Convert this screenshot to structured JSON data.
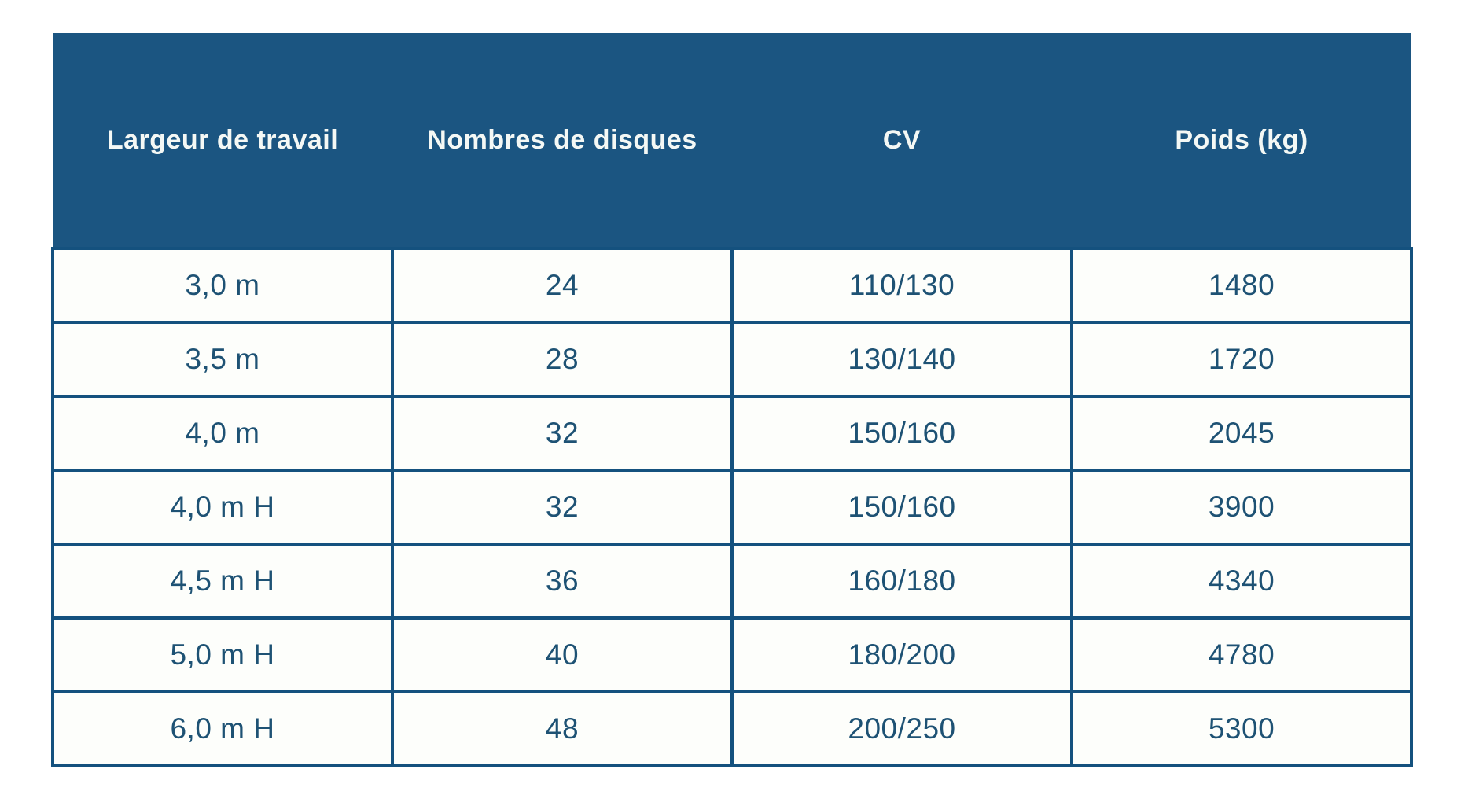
{
  "table": {
    "columns": [
      "Largeur de travail",
      "Nombres de disques",
      "CV",
      "Poids (kg)"
    ],
    "rows": [
      [
        "3,0 m",
        "24",
        "110/130",
        "1480"
      ],
      [
        "3,5 m",
        "28",
        "130/140",
        "1720"
      ],
      [
        "4,0 m",
        "32",
        "150/160",
        "2045"
      ],
      [
        "4,0 m H",
        "32",
        "150/160",
        "3900"
      ],
      [
        "4,5 m H",
        "36",
        "160/180",
        "4340"
      ],
      [
        "5,0 m H",
        "40",
        "180/200",
        "4780"
      ],
      [
        "6,0 m H",
        "48",
        "200/250",
        "5300"
      ]
    ]
  },
  "colors": {
    "header_background": "#1b5581",
    "header_text": "#f4f8f5",
    "border": "#14517e",
    "cell_text": "#1e5274",
    "cell_background": "#fdfefb",
    "page_background": "#ffffff"
  }
}
